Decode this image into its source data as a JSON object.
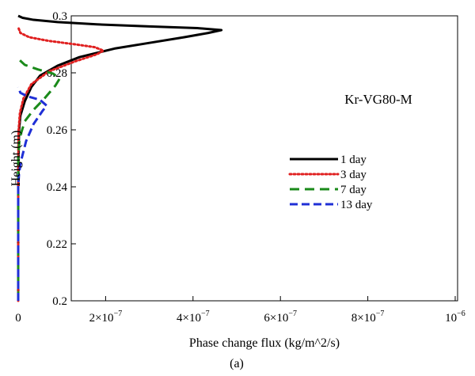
{
  "chart_data": {
    "type": "line",
    "title": "",
    "annotation": "Kr-VG80-M",
    "caption": "(a)",
    "xlabel": "Phase change flux (kg/m^2/s)",
    "ylabel": "Height (m)",
    "xlim": [
      -1e-08,
      1e-06
    ],
    "ylim": [
      0.2,
      0.3
    ],
    "x_ticks": [
      {
        "value": 0,
        "mant": "0",
        "exp": ""
      },
      {
        "value": 2e-07,
        "mant": "2×10",
        "exp": "−7"
      },
      {
        "value": 4e-07,
        "mant": "4×10",
        "exp": "−7"
      },
      {
        "value": 6e-07,
        "mant": "6×10",
        "exp": "−7"
      },
      {
        "value": 8e-07,
        "mant": "8×10",
        "exp": "−7"
      },
      {
        "value": 1e-06,
        "mant": "10",
        "exp": "−6"
      }
    ],
    "y_ticks": [
      "0.2",
      "0.22",
      "0.24",
      "0.26",
      "0.28",
      "0.3"
    ],
    "grid": false,
    "legend_position": "center-right",
    "series": [
      {
        "name": "1 day",
        "color": "#000000",
        "style": "solid",
        "points": [
          [
            0,
            0.2
          ],
          [
            0,
            0.24
          ],
          [
            5e-10,
            0.25
          ],
          [
            2e-09,
            0.26
          ],
          [
            5e-09,
            0.265
          ],
          [
            1.5e-08,
            0.27
          ],
          [
            3e-08,
            0.275
          ],
          [
            5e-08,
            0.279
          ],
          [
            9e-08,
            0.2825
          ],
          [
            1.4e-07,
            0.2855
          ],
          [
            2.2e-07,
            0.2885
          ],
          [
            3e-07,
            0.2905
          ],
          [
            3.8e-07,
            0.2925
          ],
          [
            4.35e-07,
            0.294
          ],
          [
            4.65e-07,
            0.295
          ],
          [
            4.1e-07,
            0.2957
          ],
          [
            3e-07,
            0.2963
          ],
          [
            1.8e-07,
            0.297
          ],
          [
            9e-08,
            0.2978
          ],
          [
            3.5e-08,
            0.2986
          ],
          [
            1e-08,
            0.2993
          ],
          [
            0,
            0.3
          ]
        ]
      },
      {
        "name": "3 day",
        "color": "#e02020",
        "style": "dotted",
        "points": [
          [
            0,
            0.2
          ],
          [
            0,
            0.25
          ],
          [
            1e-09,
            0.26
          ],
          [
            4e-09,
            0.266
          ],
          [
            1.2e-08,
            0.271
          ],
          [
            3e-08,
            0.276
          ],
          [
            7e-08,
            0.2805
          ],
          [
            1.3e-07,
            0.284
          ],
          [
            1.8e-07,
            0.2865
          ],
          [
            1.95e-07,
            0.2878
          ],
          [
            1.75e-07,
            0.289
          ],
          [
            1.3e-07,
            0.29
          ],
          [
            7e-08,
            0.2912
          ],
          [
            2.5e-08,
            0.2925
          ],
          [
            5e-09,
            0.294
          ],
          [
            0,
            0.296
          ]
        ]
      },
      {
        "name": "7 day",
        "color": "#1a8a1a",
        "style": "dashed",
        "points": [
          [
            0,
            0.2
          ],
          [
            0,
            0.25
          ],
          [
            3e-09,
            0.257
          ],
          [
            1.5e-08,
            0.263
          ],
          [
            3.5e-08,
            0.267
          ],
          [
            6e-08,
            0.271
          ],
          [
            8.5e-08,
            0.2755
          ],
          [
            9.5e-08,
            0.278
          ],
          [
            8e-08,
            0.2797
          ],
          [
            4.5e-08,
            0.2812
          ],
          [
            1.5e-08,
            0.2828
          ],
          [
            3e-09,
            0.2845
          ],
          [
            0,
            0.286
          ]
        ]
      },
      {
        "name": "13 day",
        "color": "#1f2fd6",
        "style": "dashed",
        "points": [
          [
            0,
            0.2
          ],
          [
            0,
            0.24
          ],
          [
            2e-09,
            0.245
          ],
          [
            8e-09,
            0.25
          ],
          [
            1.8e-08,
            0.256
          ],
          [
            3.5e-08,
            0.262
          ],
          [
            5.5e-08,
            0.2665
          ],
          [
            6.5e-08,
            0.2685
          ],
          [
            5e-08,
            0.2705
          ],
          [
            2e-08,
            0.2718
          ],
          [
            5e-09,
            0.273
          ],
          [
            0,
            0.275
          ]
        ]
      }
    ]
  }
}
